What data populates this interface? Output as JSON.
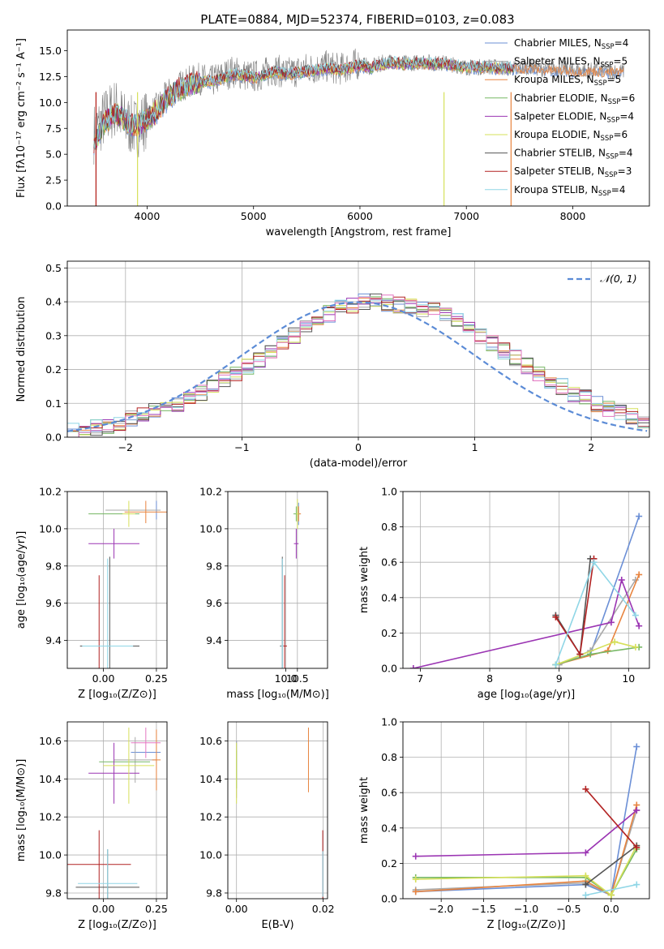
{
  "figure_title": "PLATE=0884, MJD=52374, FIBERID=0103, z=0.083",
  "legend_spectrum": [
    {
      "label": "Chabrier MILES, N",
      "sub": "SSP",
      "tail": "=4",
      "color": "#6b8fd6"
    },
    {
      "label": "Salpeter MILES, N",
      "sub": "SSP",
      "tail": "=5",
      "color": "#a9a9a9"
    },
    {
      "label": "Kroupa MILES, N",
      "sub": "SSP",
      "tail": "=5",
      "color": "#e8843f"
    },
    {
      "label": "Chabrier ELODIE, N",
      "sub": "SSP",
      "tail": "=6",
      "color": "#77b865"
    },
    {
      "label": "Salpeter ELODIE, N",
      "sub": "SSP",
      "tail": "=4",
      "color": "#9b35b3"
    },
    {
      "label": "Kroupa ELODIE, N",
      "sub": "SSP",
      "tail": "=6",
      "color": "#d6e05a"
    },
    {
      "label": "Chabrier STELIB, N",
      "sub": "SSP",
      "tail": "=4",
      "color": "#555555"
    },
    {
      "label": "Salpeter STELIB, N",
      "sub": "SSP",
      "tail": "=3",
      "color": "#b22222"
    },
    {
      "label": "Kroupa STELIB, N",
      "sub": "SSP",
      "tail": "=4",
      "color": "#8fd6e6"
    }
  ],
  "chart_data": [
    {
      "id": "spectrum",
      "type": "line",
      "title": "PLATE=0884, MJD=52374, FIBERID=0103, z=0.083",
      "xlabel": "wavelength [Angstrom, rest frame]",
      "ylabel": "Flux [fλ10⁻¹⁷ erg cm⁻² s⁻¹ A⁻¹]",
      "xlim": [
        3250,
        8720
      ],
      "ylim": [
        0,
        17
      ],
      "xticks": [
        4000,
        5000,
        6000,
        7000,
        8000
      ],
      "yticks": [
        0.0,
        2.5,
        5.0,
        7.5,
        10.0,
        12.5,
        15.0
      ],
      "grid": false,
      "legend": "upper right",
      "data_x": [
        3500,
        3600,
        3700,
        3800,
        3900,
        4000,
        4100,
        4200,
        4300,
        4400,
        4500,
        4600,
        4700,
        4800,
        4900,
        5000,
        5100,
        5200,
        5300,
        5400,
        5500,
        5600,
        5700,
        5800,
        5900,
        6000,
        6100,
        6200,
        6300,
        6400,
        6500,
        6600,
        6700,
        6800,
        6900,
        7000,
        7100,
        7200,
        7300,
        7400,
        7500,
        7600,
        7700,
        7800,
        7900,
        8000,
        8100,
        8200,
        8300,
        8400
      ],
      "data_y": [
        7.0,
        8.5,
        9.5,
        8.0,
        7.5,
        8.5,
        9.5,
        10.8,
        11.5,
        12.0,
        12.3,
        12.0,
        12.5,
        13.0,
        12.7,
        12.5,
        12.8,
        13.2,
        12.8,
        13.0,
        13.3,
        13.3,
        13.5,
        13.2,
        13.5,
        13.8,
        13.4,
        13.8,
        14.0,
        13.8,
        13.8,
        14.0,
        13.8,
        13.8,
        13.6,
        13.4,
        13.4,
        13.5,
        13.4,
        13.3,
        13.3,
        13.5,
        13.2,
        13.3,
        13.3,
        13.1,
        13.1,
        13.1,
        13.1,
        13.0
      ],
      "model_y": [
        6.0,
        8.0,
        9.0,
        8.2,
        7.7,
        8.4,
        9.2,
        10.5,
        11.2,
        11.8,
        12.0,
        12.0,
        12.3,
        12.7,
        12.6,
        12.4,
        12.6,
        13.0,
        12.7,
        12.8,
        13.0,
        13.1,
        13.3,
        13.1,
        13.3,
        13.6,
        13.3,
        13.6,
        13.8,
        13.7,
        13.7,
        13.8,
        13.7,
        13.7,
        13.5,
        13.4,
        13.4,
        13.4,
        13.3,
        13.3,
        13.3,
        13.4,
        13.2,
        13.2,
        13.2,
        13.1,
        13.1,
        13.1,
        13.0,
        13.0
      ]
    },
    {
      "id": "residuals",
      "type": "line",
      "xlabel": "(data-model)/error",
      "ylabel": "Normed distribution",
      "xlim": [
        -2.5,
        2.5
      ],
      "ylim": [
        0,
        0.52
      ],
      "xticks": [
        -2,
        -1,
        0,
        1,
        2
      ],
      "yticks": [
        0.0,
        0.1,
        0.2,
        0.3,
        0.4,
        0.5
      ],
      "grid": true,
      "legend": "upper right",
      "series": [
        {
          "name": "𝒩(0, 1)",
          "color": "#5b8bd6"
        }
      ],
      "hist_edges_start": -2.5,
      "hist_bin_width": 0.1,
      "hist_values": [
        0.02,
        0.025,
        0.03,
        0.035,
        0.045,
        0.055,
        0.065,
        0.075,
        0.085,
        0.1,
        0.115,
        0.13,
        0.15,
        0.17,
        0.19,
        0.21,
        0.23,
        0.255,
        0.28,
        0.3,
        0.325,
        0.345,
        0.365,
        0.38,
        0.39,
        0.4,
        0.4,
        0.395,
        0.39,
        0.385,
        0.38,
        0.375,
        0.36,
        0.345,
        0.325,
        0.3,
        0.28,
        0.255,
        0.235,
        0.21,
        0.19,
        0.17,
        0.15,
        0.13,
        0.115,
        0.1,
        0.085,
        0.07,
        0.06,
        0.05
      ]
    },
    {
      "id": "age-vs-Z",
      "type": "scatter",
      "xlabel": "Z [log₁₀(Z/Z⊙)]",
      "ylabel": "age  [log₁₀(age/yr)]",
      "xlim": [
        -0.17,
        0.3
      ],
      "ylim": [
        9.25,
        10.2
      ],
      "xticks": [
        0.0,
        0.25
      ],
      "yticks": [
        9.4,
        9.6,
        9.8,
        10.0,
        10.2
      ],
      "grid": true,
      "points": [
        {
          "x": 0.25,
          "y": 10.1,
          "ex": 0.0,
          "ey": 0.05,
          "color": "#6b8fd6"
        },
        {
          "x": 0.14,
          "y": 10.1,
          "ex": 0.13,
          "ey": 0.0,
          "color": "#a9a9a9"
        },
        {
          "x": 0.2,
          "y": 10.09,
          "ex": 0.1,
          "ey": 0.06,
          "color": "#e8843f"
        },
        {
          "x": 0.05,
          "y": 10.08,
          "ex": 0.12,
          "ey": 0.0,
          "color": "#77b865"
        },
        {
          "x": 0.05,
          "y": 9.92,
          "ex": 0.12,
          "ey": 0.08,
          "color": "#9b35b3"
        },
        {
          "x": 0.12,
          "y": 10.08,
          "ex": 0.03,
          "ey": 0.07,
          "color": "#d6e05a"
        },
        {
          "x": 0.03,
          "y": 9.37,
          "ex": 0.14,
          "ey": 0.48,
          "color": "#555555"
        },
        {
          "x": -0.02,
          "y": 9.37,
          "ex": 0.0,
          "ey": 0.38,
          "color": "#b22222"
        },
        {
          "x": 0.02,
          "y": 9.37,
          "ex": 0.12,
          "ey": 0.47,
          "color": "#8fd6e6"
        }
      ]
    },
    {
      "id": "age-vs-mass",
      "type": "scatter",
      "xlabel": "mass [log₁₀(M/M⊙)]",
      "ylabel": "",
      "xlim": [
        7.5,
        11.8
      ],
      "ylim": [
        9.25,
        10.2
      ],
      "xticks": [
        10.0,
        10.5
      ],
      "yticks": [
        9.4,
        9.6,
        9.8,
        10.0,
        10.2
      ],
      "grid": true,
      "points": [
        {
          "x": 10.55,
          "y": 10.08,
          "ex": 0.05,
          "ey": 0.06,
          "color": "#6b8fd6"
        },
        {
          "x": 10.55,
          "y": 10.08,
          "ex": 0.1,
          "ey": 0.04,
          "color": "#a9a9a9"
        },
        {
          "x": 10.55,
          "y": 10.08,
          "ex": 0.1,
          "ey": 0.04,
          "color": "#e8843f"
        },
        {
          "x": 10.45,
          "y": 10.08,
          "ex": 0.12,
          "ey": 0.04,
          "color": "#77b865"
        },
        {
          "x": 10.45,
          "y": 9.92,
          "ex": 0.1,
          "ey": 0.08,
          "color": "#9b35b3"
        },
        {
          "x": 10.5,
          "y": 10.08,
          "ex": 0.05,
          "ey": 0.08,
          "color": "#d6e05a"
        },
        {
          "x": 9.85,
          "y": 9.37,
          "ex": 0.1,
          "ey": 0.48,
          "color": "#555555"
        },
        {
          "x": 9.95,
          "y": 9.37,
          "ex": 0.1,
          "ey": 0.38,
          "color": "#b22222"
        },
        {
          "x": 9.85,
          "y": 9.37,
          "ex": 0.05,
          "ey": 0.47,
          "color": "#8fd6e6"
        }
      ]
    },
    {
      "id": "weight-vs-age",
      "type": "line",
      "xlabel": "age  [log₁₀(age/yr)]",
      "ylabel": "mass weight",
      "xlim": [
        6.75,
        10.3
      ],
      "ylim": [
        0,
        1.0
      ],
      "xticks": [
        7,
        8,
        9,
        10
      ],
      "yticks": [
        0.0,
        0.2,
        0.4,
        0.6,
        0.8,
        1.0
      ],
      "grid": true,
      "series": [
        {
          "name": "Chabrier MILES",
          "color": "#6b8fd6",
          "x": [
            8.95,
            9.45,
            10.15
          ],
          "y": [
            0.02,
            0.08,
            0.86
          ]
        },
        {
          "name": "Salpeter MILES",
          "color": "#a9a9a9",
          "x": [
            9.0,
            9.45,
            10.1
          ],
          "y": [
            0.02,
            0.1,
            0.5
          ]
        },
        {
          "name": "Kroupa MILES",
          "color": "#e8843f",
          "x": [
            8.95,
            9.7,
            10.15
          ],
          "y": [
            0.02,
            0.1,
            0.53
          ]
        },
        {
          "name": "Chabrier ELODIE",
          "color": "#77b865",
          "x": [
            8.95,
            9.45,
            10.15
          ],
          "y": [
            0.02,
            0.08,
            0.12
          ]
        },
        {
          "name": "Salpeter ELODIE",
          "color": "#9b35b3",
          "x": [
            6.9,
            9.75,
            9.9,
            10.15
          ],
          "y": [
            0.0,
            0.26,
            0.5,
            0.24
          ]
        },
        {
          "name": "Kroupa ELODIE",
          "color": "#d6e05a",
          "x": [
            8.95,
            9.8,
            10.1
          ],
          "y": [
            0.02,
            0.15,
            0.12
          ]
        },
        {
          "name": "Chabrier STELIB",
          "color": "#555555",
          "x": [
            8.95,
            9.3,
            9.45
          ],
          "y": [
            0.3,
            0.08,
            0.62
          ]
        },
        {
          "name": "Salpeter STELIB",
          "color": "#b22222",
          "x": [
            8.95,
            9.3,
            9.5
          ],
          "y": [
            0.29,
            0.08,
            0.62
          ]
        },
        {
          "name": "Kroupa STELIB",
          "color": "#8fd6e6",
          "x": [
            8.95,
            9.5,
            10.1
          ],
          "y": [
            0.02,
            0.6,
            0.3
          ]
        }
      ]
    },
    {
      "id": "mass-vs-Z",
      "type": "scatter",
      "xlabel": "Z [log₁₀(Z/Z⊙)]",
      "ylabel": "mass [log₁₀(M/M⊙)]",
      "xlim": [
        -0.17,
        0.3
      ],
      "ylim": [
        9.77,
        10.7
      ],
      "xticks": [
        0.0,
        0.25
      ],
      "yticks": [
        9.8,
        10.0,
        10.2,
        10.4,
        10.6
      ],
      "grid": true,
      "points": [
        {
          "x": 0.2,
          "y": 10.54,
          "ex": 0.07,
          "ey": 0.0,
          "color": "#6b8fd6"
        },
        {
          "x": 0.15,
          "y": 10.5,
          "ex": 0.1,
          "ey": 0.12,
          "color": "#a9a9a9"
        },
        {
          "x": 0.25,
          "y": 10.5,
          "ex": 0.02,
          "ey": 0.16,
          "color": "#e8843f"
        },
        {
          "x": 0.1,
          "y": 10.49,
          "ex": 0.12,
          "ey": 0.0,
          "color": "#77b865"
        },
        {
          "x": 0.05,
          "y": 10.43,
          "ex": 0.12,
          "ey": 0.16,
          "color": "#9b35b3"
        },
        {
          "x": 0.12,
          "y": 10.47,
          "ex": 0.12,
          "ey": 0.2,
          "color": "#d6e05a"
        },
        {
          "x": 0.02,
          "y": 9.83,
          "ex": 0.15,
          "ey": 0.2,
          "color": "#555555"
        },
        {
          "x": -0.02,
          "y": 9.95,
          "ex": 0.15,
          "ey": 0.18,
          "color": "#b22222"
        },
        {
          "x": 0.02,
          "y": 9.85,
          "ex": 0.14,
          "ey": 0.18,
          "color": "#8fd6e6"
        },
        {
          "x": 0.2,
          "y": 10.59,
          "ex": 0.07,
          "ey": 0.08,
          "color": "#e377c2"
        }
      ]
    },
    {
      "id": "mass-vs-EBV",
      "type": "scatter",
      "xlabel": "E(B-V)",
      "ylabel": "",
      "xlim": [
        -0.002,
        0.021
      ],
      "ylim": [
        9.77,
        10.7
      ],
      "xticks": [
        0.0,
        0.02
      ],
      "xticklabels": [
        "0.00",
        "0.02"
      ],
      "yticks": [
        9.8,
        10.0,
        10.2,
        10.4,
        10.6
      ],
      "grid": true,
      "points": [
        {
          "x": 0.0,
          "y": 10.5,
          "ex": 0.0,
          "ey": 0.1,
          "color": "#6b8fd6"
        },
        {
          "x": 0.0,
          "y": 10.45,
          "ex": 0.0,
          "ey": 0.15,
          "color": "#a9a9a9"
        },
        {
          "x": 0.0166,
          "y": 10.5,
          "ex": 0.0,
          "ey": 0.17,
          "color": "#e8843f"
        },
        {
          "x": 0.0,
          "y": 10.45,
          "ex": 0.0,
          "ey": 0.1,
          "color": "#77b865"
        },
        {
          "x": 0.0,
          "y": 10.43,
          "ex": 0.0,
          "ey": 0.16,
          "color": "#d6e05a"
        },
        {
          "x": 0.0199,
          "y": 9.95,
          "ex": 0.0,
          "ey": 0.18,
          "color": "#b22222"
        },
        {
          "x": 0.0199,
          "y": 9.9,
          "ex": 0.0,
          "ey": 0.12,
          "color": "#8fd6e6"
        }
      ]
    },
    {
      "id": "weight-vs-Z",
      "type": "line",
      "xlabel": "Z [log₁₀(Z/Z⊙)]",
      "ylabel": "mass weight",
      "xlim": [
        -2.45,
        0.45
      ],
      "ylim": [
        0,
        1.0
      ],
      "xticks": [
        -2.0,
        -1.5,
        -1.0,
        -0.5,
        0.0
      ],
      "yticks": [
        0.0,
        0.2,
        0.4,
        0.6,
        0.8,
        1.0
      ],
      "grid": true,
      "series": [
        {
          "name": "Chabrier MILES",
          "color": "#6b8fd6",
          "x": [
            -2.3,
            -0.3,
            0.0,
            0.3
          ],
          "y": [
            0.04,
            0.08,
            0.02,
            0.86
          ]
        },
        {
          "name": "Salpeter MILES",
          "color": "#a9a9a9",
          "x": [
            -2.3,
            -0.3,
            0.0,
            0.3
          ],
          "y": [
            0.05,
            0.09,
            0.02,
            0.5
          ]
        },
        {
          "name": "Kroupa MILES",
          "color": "#e8843f",
          "x": [
            -2.3,
            -0.3,
            0.0,
            0.3
          ],
          "y": [
            0.04,
            0.1,
            0.02,
            0.53
          ]
        },
        {
          "name": "Chabrier ELODIE",
          "color": "#77b865",
          "x": [
            -2.3,
            -0.3,
            0.0,
            0.3
          ],
          "y": [
            0.12,
            0.12,
            0.02,
            0.28
          ]
        },
        {
          "name": "Salpeter ELODIE",
          "color": "#9b35b3",
          "x": [
            -2.3,
            -0.3,
            0.3
          ],
          "y": [
            0.24,
            0.26,
            0.5
          ]
        },
        {
          "name": "Kroupa ELODIE",
          "color": "#d6e05a",
          "x": [
            -2.3,
            -0.3,
            0.0,
            0.3
          ],
          "y": [
            0.11,
            0.13,
            0.02,
            0.3
          ]
        },
        {
          "name": "Chabrier STELIB",
          "color": "#555555",
          "x": [
            -0.3,
            0.3
          ],
          "y": [
            0.08,
            0.3
          ]
        },
        {
          "name": "Salpeter STELIB",
          "color": "#b22222",
          "x": [
            -0.3,
            0.3
          ],
          "y": [
            0.62,
            0.29
          ]
        },
        {
          "name": "Kroupa STELIB",
          "color": "#8fd6e6",
          "x": [
            -0.3,
            0.3
          ],
          "y": [
            0.02,
            0.08
          ]
        }
      ]
    }
  ]
}
